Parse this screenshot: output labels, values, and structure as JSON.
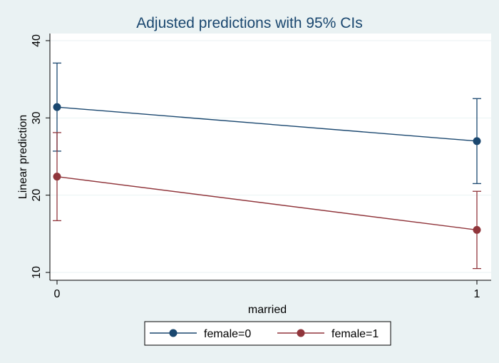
{
  "chart_data": {
    "type": "line",
    "title": "Adjusted predictions with 95% CIs",
    "xlabel": "married",
    "ylabel": "Linear prediction",
    "x": [
      0,
      1
    ],
    "x_tick_labels": [
      "0",
      "1"
    ],
    "xlim": [
      0,
      1
    ],
    "ylim": [
      10,
      40
    ],
    "y_ticks": [
      10,
      20,
      30,
      40
    ],
    "y_tick_labels": [
      "10",
      "20",
      "30",
      "40"
    ],
    "grid": true,
    "legend_position": "bottom",
    "series": [
      {
        "name": "female=0",
        "color": "#1a476f",
        "values": [
          31.4,
          27.0
        ],
        "ci_lower": [
          25.7,
          21.5
        ],
        "ci_upper": [
          37.1,
          32.5
        ]
      },
      {
        "name": "female=1",
        "color": "#90353b",
        "values": [
          22.4,
          15.5
        ],
        "ci_lower": [
          16.7,
          10.5
        ],
        "ci_upper": [
          28.1,
          20.5
        ]
      }
    ],
    "colors": {
      "background": "#eaf2f3",
      "plot_background": "#ffffff",
      "gridline": "#eaf2f3"
    }
  }
}
